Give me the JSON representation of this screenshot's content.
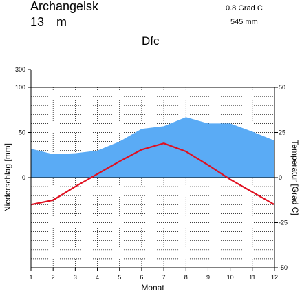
{
  "header": {
    "station": "Archangelsk",
    "elevation_value": "13",
    "elevation_unit": "m",
    "temp_summary": "0.8 Grad C",
    "precip_summary": "545 mm",
    "climate_class": "Dfc"
  },
  "chart_data": {
    "type": "area",
    "x": [
      1,
      2,
      3,
      4,
      5,
      6,
      7,
      8,
      9,
      10,
      11,
      12
    ],
    "x_ticks": [
      "1",
      "2",
      "3",
      "4",
      "5",
      "6",
      "7",
      "8",
      "9",
      "10",
      "11",
      "12"
    ],
    "xlabel": "Monat",
    "ylabel_left": "Niederschlag [mm]",
    "ylabel_right": "Temperatur [Grad C]",
    "left_ticks": [
      "300",
      "100",
      "50",
      "0"
    ],
    "right_ticks": [
      "50",
      "25",
      "0",
      "-25",
      "-50"
    ],
    "ylim_right": [
      -50,
      50
    ],
    "precip_scale_note": "0-100 mm linear (2 mm = 1 Grad C), above 100 mm compressed to 300",
    "grid": true,
    "series": [
      {
        "kind": "precipitation",
        "values": [
          32,
          26,
          27,
          30,
          40,
          54,
          57,
          67,
          60,
          60,
          51,
          41
        ],
        "color": "#5aabf5"
      },
      {
        "kind": "temperature",
        "values": [
          -15,
          -12.5,
          -5,
          2,
          9,
          15.5,
          19,
          14.5,
          7,
          -1,
          -8,
          -15
        ],
        "color": "#e01020"
      }
    ]
  }
}
